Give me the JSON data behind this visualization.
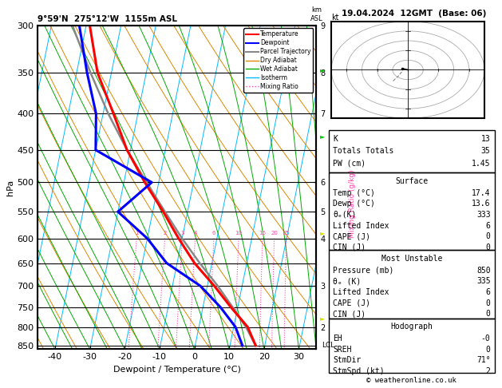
{
  "title_left": "9°59'N  275°12'W  1155m ASL",
  "title_right": "19.04.2024  12GMT  (Base: 06)",
  "xlabel": "Dewpoint / Temperature (°C)",
  "ylabel_left": "hPa",
  "pressure_ticks": [
    300,
    350,
    400,
    450,
    500,
    550,
    600,
    650,
    700,
    750,
    800,
    850
  ],
  "temp_min": -45,
  "temp_max": 35,
  "P_MIN": 300,
  "P_MAX": 860,
  "SKEW": 18.0,
  "bg_color": "#ffffff",
  "temp_profile": {
    "temps": [
      17.4,
      14.0,
      8.0,
      2.0,
      -5.0,
      -11.0,
      -17.0,
      -24.0,
      -31.0,
      -37.0,
      -44.0,
      -49.0
    ],
    "pressures": [
      850,
      800,
      750,
      700,
      650,
      600,
      550,
      500,
      450,
      400,
      350,
      300
    ],
    "color": "#ff0000",
    "lw": 2.2
  },
  "dewpoint_profile": {
    "temps": [
      13.6,
      10.5,
      5.0,
      -2.0,
      -13.0,
      -20.0,
      -30.0,
      -22.0,
      -40.0,
      -42.0,
      -47.0,
      -52.0
    ],
    "pressures": [
      850,
      800,
      750,
      700,
      650,
      600,
      550,
      500,
      450,
      400,
      350,
      300
    ],
    "color": "#0000ff",
    "lw": 2.2
  },
  "parcel_profile": {
    "temps": [
      17.4,
      13.5,
      8.5,
      3.0,
      -3.5,
      -10.0,
      -16.5,
      -23.5,
      -31.0,
      -38.5,
      -46.0,
      -54.0
    ],
    "pressures": [
      850,
      800,
      750,
      700,
      650,
      600,
      550,
      500,
      450,
      400,
      350,
      300
    ],
    "color": "#888888",
    "lw": 1.8
  },
  "isotherm_color": "#00bbff",
  "dry_adiabat_color": "#dd8800",
  "wet_adiabat_color": "#00aa00",
  "mixing_ratio_color": "#ff44aa",
  "mixing_ratio_values": [
    1,
    2,
    3,
    4,
    6,
    10,
    16,
    20,
    25
  ],
  "km_ticks": [
    [
      300,
      "9"
    ],
    [
      350,
      "8"
    ],
    [
      400,
      "7"
    ],
    [
      500,
      "6"
    ],
    [
      550,
      "5"
    ],
    [
      600,
      "4"
    ],
    [
      700,
      "3"
    ],
    [
      800,
      "2"
    ]
  ],
  "stats": {
    "K": 13,
    "Totals_Totals": 35,
    "PW_cm": 1.45,
    "Surface_Temp": "17.4",
    "Surface_Dewp": "13.6",
    "theta_e_K": "333",
    "Lifted_Index": "6",
    "CAPE_J": "0",
    "CIN_J": "0",
    "MU_Pressure_mb": "850",
    "MU_theta_e_K": "335",
    "MU_Lifted_Index": "6",
    "MU_CAPE_J": "0",
    "MU_CIN_J": "0",
    "EH": "-0",
    "SREH": "0",
    "StmDir": "71°",
    "StmSpd_kt": "2"
  },
  "legend_items": [
    {
      "label": "Temperature",
      "color": "#ff0000",
      "lw": 1.5,
      "ls": "solid"
    },
    {
      "label": "Dewpoint",
      "color": "#0000ff",
      "lw": 1.5,
      "ls": "solid"
    },
    {
      "label": "Parcel Trajectory",
      "color": "#888888",
      "lw": 1.5,
      "ls": "solid"
    },
    {
      "label": "Dry Adiabat",
      "color": "#dd8800",
      "lw": 1.0,
      "ls": "solid"
    },
    {
      "label": "Wet Adiabat",
      "color": "#00aa00",
      "lw": 1.0,
      "ls": "solid"
    },
    {
      "label": "Isotherm",
      "color": "#00bbff",
      "lw": 1.0,
      "ls": "solid"
    },
    {
      "label": "Mixing Ratio",
      "color": "#ff44aa",
      "lw": 1.0,
      "ls": "dotted"
    }
  ],
  "copyright": "© weatheronline.co.uk"
}
